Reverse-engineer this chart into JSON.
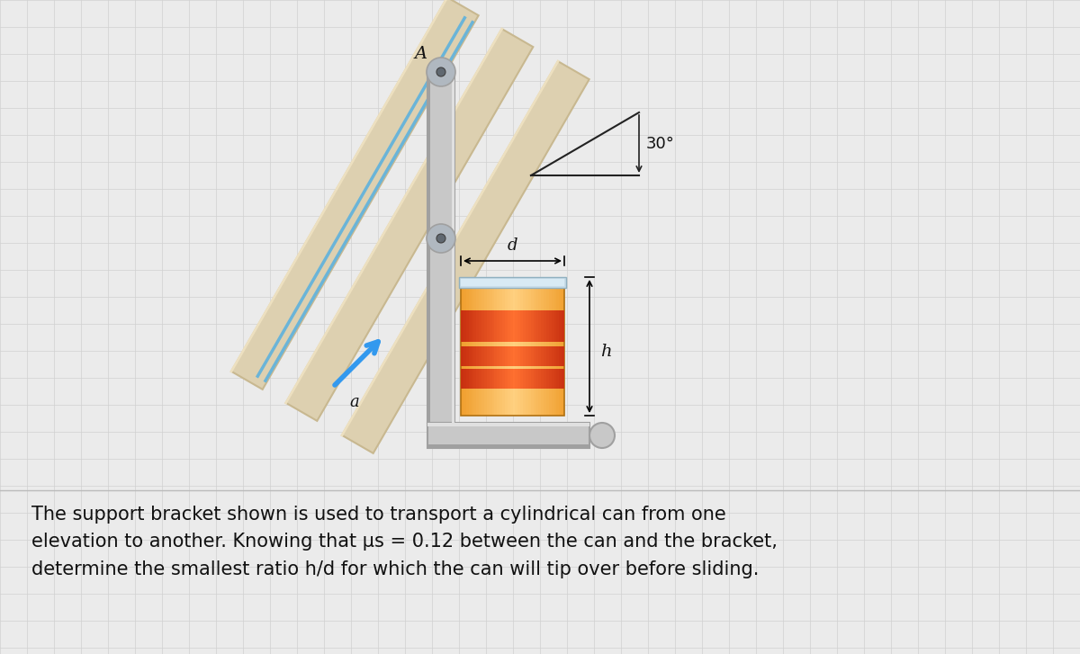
{
  "bg_color": "#ebebeb",
  "grid_color": "#d0d0d0",
  "text_color": "#111111",
  "title_text": "The support bracket shown is used to transport a cylindrical can from one\nelevation to another. Knowing that μs = 0.12 between the can and the bracket,\ndetermine the smallest ratio h/d for which the can will tip over before sliding.",
  "label_A": "A",
  "label_a": "a",
  "label_30": "30°",
  "label_d": "d",
  "label_h": "h",
  "rail_color": "#ddd0b0",
  "rail_shadow_color": "#c8b890",
  "rail_highlight_color": "#ede0c0",
  "rail_stripe_color": "#6ab4d8",
  "bracket_color": "#c8c8c8",
  "bracket_dark_color": "#a0a0a0",
  "bracket_light_color": "#e0e0e0",
  "can_orange": "#f0a030",
  "can_orange_light": "#ffd070",
  "can_orange_dark": "#d07010",
  "can_red": "#d04020",
  "can_red_light": "#f06040",
  "can_top_color": "#c8dce8",
  "can_top_dark": "#90b0c0",
  "arrow_color": "#3399ee",
  "angle_line_color": "#222222",
  "pin_outer": "#b0b8c0",
  "pin_inner": "#606870",
  "separator_color": "#bbbbbb"
}
